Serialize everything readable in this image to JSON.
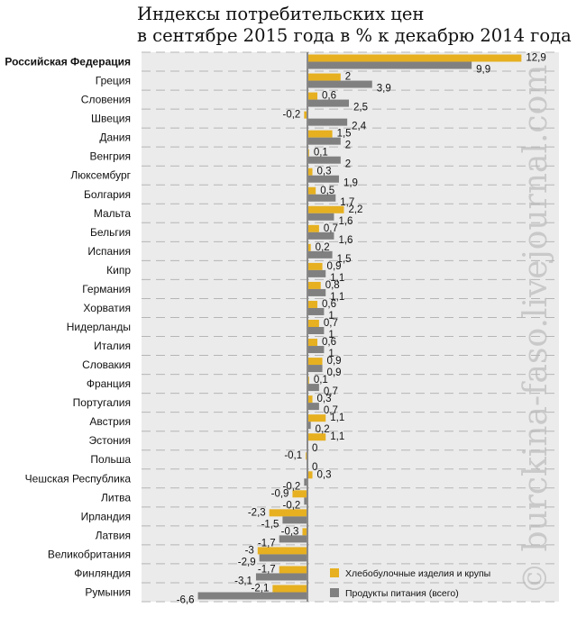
{
  "chart_data": {
    "type": "bar",
    "orientation": "horizontal",
    "title": "Индексы потребительских цен в сентябре 2015 года в % к декабрю 2014 года",
    "title_lines": [
      "Индексы потребительских цен",
      "в сентябре 2015 года в % к декабрю 2014 года"
    ],
    "xlabel": "",
    "ylabel": "",
    "xlim": [
      -7.5,
      15
    ],
    "grid": true,
    "legend_position": "bottom-right",
    "categories": [
      "Российская Федерация",
      "Греция",
      "Словения",
      "Швеция",
      "Дания",
      "Венгрия",
      "Люксембург",
      "Болгария",
      "Мальта",
      "Бельгия",
      "Испания",
      "Кипр",
      "Германия",
      "Хорватия",
      "Нидерланды",
      "Италия",
      "Словакия",
      "Франция",
      "Португалия",
      "Австрия",
      "Эстония",
      "Польша",
      "Чешская Республика",
      "Литва",
      "Ирландия",
      "Латвия",
      "Великобритания",
      "Финляндия",
      "Румыния"
    ],
    "highlighted_category": "Российская Федерация",
    "series": [
      {
        "name": "Хлебобулочные изделия и крупы",
        "color": "#e6b020",
        "values": [
          12.9,
          2,
          0.6,
          -0.2,
          1.5,
          0.1,
          0.3,
          0.5,
          2.2,
          0.7,
          0.2,
          0.9,
          0.8,
          0.6,
          0.7,
          0.6,
          0.9,
          0.1,
          0.3,
          1.1,
          1.1,
          -0.1,
          0.3,
          -0.9,
          -2.3,
          -0.3,
          -3,
          -1.7,
          -2.1
        ],
        "labels": [
          "12,9",
          "2",
          "0,6",
          "-0,2",
          "1,5",
          "0,1",
          "0,3",
          "0,5",
          "2,2",
          "0,7",
          "0,2",
          "0,9",
          "0,8",
          "0,6",
          "0,7",
          "0,6",
          "0,9",
          "0,1",
          "0,3",
          "1,1",
          "1,1",
          "-0,1",
          "0,3",
          "-0,9",
          "-2,3",
          "-0,3",
          "-3",
          "-1,7",
          "-2,1"
        ]
      },
      {
        "name": "Продукты питания (всего)",
        "color": "#808080",
        "values": [
          9.9,
          3.9,
          2.5,
          2.4,
          2,
          2,
          1.9,
          1.7,
          1.6,
          1.6,
          1.5,
          1.1,
          1.1,
          1,
          1,
          1,
          0.9,
          0.7,
          0.7,
          0.2,
          0,
          0,
          -0.2,
          -0.2,
          -1.5,
          -1.7,
          -2.9,
          -3.1,
          -6.6
        ],
        "labels": [
          "9,9",
          "3,9",
          "2,5",
          "2,4",
          "2",
          "2",
          "1,9",
          "1,7",
          "1,6",
          "1,6",
          "1,5",
          "1,1",
          "1,1",
          "1",
          "1",
          "1",
          "0,9",
          "0,7",
          "0,7",
          "0,2",
          "0",
          "0",
          "-0,2",
          "-0,2",
          "-1,5",
          "-1,7",
          "-2,9",
          "-3,1",
          "-6,6"
        ]
      }
    ],
    "watermark": "© burckina-faso.livejournal.com"
  },
  "colors": {
    "plot_background": "#ebebeb",
    "gridline": "#b5b5b5",
    "axis": "#8a8a8a"
  }
}
